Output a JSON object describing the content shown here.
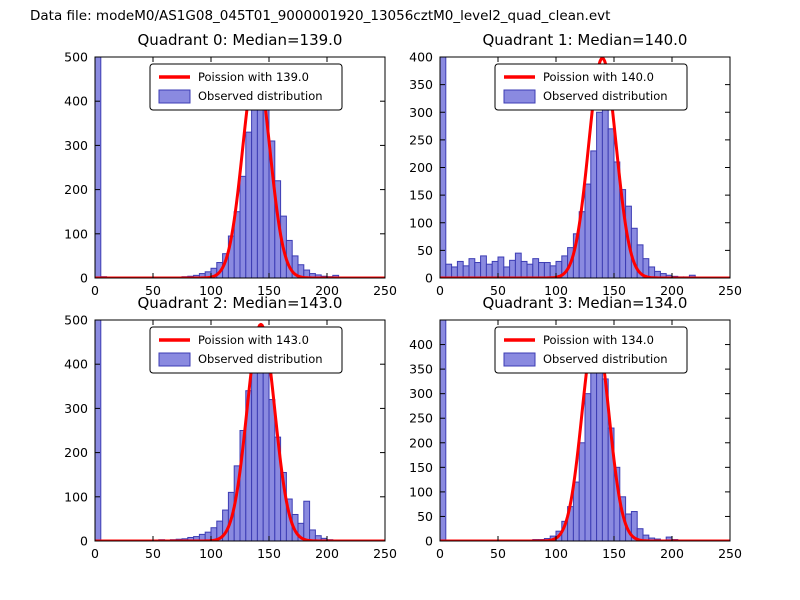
{
  "suptitle": "Data file: modeM0/AS1G08_045T01_9000001920_13056cztM0_level2_quad_clean.evt",
  "colors": {
    "bar_fill": "#8a8ae0",
    "bar_edge": "#3c3cb4",
    "curve": "#ff0000",
    "axis": "#000000",
    "legend_bg": "#ffffff"
  },
  "chart_data": [
    {
      "type": "bar",
      "subtype": "histogram-with-fit-line",
      "title": "Quadrant 0: Median=139.0",
      "median": 139.0,
      "legend": [
        "Poission with 139.0",
        "Observed distribution"
      ],
      "xlim": [
        0,
        250
      ],
      "ylim": [
        0,
        500
      ],
      "xticks": [
        0,
        50,
        100,
        150,
        200,
        250
      ],
      "yticks": [
        0,
        100,
        200,
        300,
        400,
        500
      ],
      "bin_width": 5,
      "counts": [
        500,
        3,
        2,
        2,
        1,
        2,
        1,
        2,
        1,
        2,
        1,
        2,
        2,
        1,
        2,
        3,
        4,
        6,
        10,
        14,
        22,
        35,
        55,
        95,
        150,
        230,
        330,
        420,
        435,
        390,
        310,
        220,
        140,
        85,
        50,
        30,
        18,
        10,
        7,
        4,
        3,
        6,
        0,
        0,
        0,
        0,
        0,
        0,
        0,
        0
      ],
      "curve": {
        "model": "poisson-approx",
        "lambda": 139.0,
        "peak": 480
      }
    },
    {
      "type": "bar",
      "subtype": "histogram-with-fit-line",
      "title": "Quadrant 1: Median=140.0",
      "median": 140.0,
      "legend": [
        "Poission with 140.0",
        "Observed distribution"
      ],
      "xlim": [
        0,
        250
      ],
      "ylim": [
        0,
        400
      ],
      "xticks": [
        0,
        50,
        100,
        150,
        200,
        250
      ],
      "yticks": [
        0,
        50,
        100,
        150,
        200,
        250,
        300,
        350,
        400
      ],
      "bin_width": 5,
      "counts": [
        400,
        25,
        20,
        30,
        22,
        35,
        28,
        40,
        25,
        30,
        38,
        20,
        32,
        45,
        30,
        25,
        35,
        28,
        28,
        22,
        30,
        40,
        55,
        80,
        120,
        170,
        230,
        300,
        320,
        270,
        210,
        160,
        130,
        90,
        60,
        35,
        20,
        12,
        8,
        5,
        3,
        2,
        2,
        5,
        0,
        0,
        0,
        0,
        0,
        0
      ],
      "curve": {
        "model": "poisson-approx",
        "lambda": 140.0,
        "peak": 398
      }
    },
    {
      "type": "bar",
      "subtype": "histogram-with-fit-line",
      "title": "Quadrant 2: Median=143.0",
      "median": 143.0,
      "legend": [
        "Poission with 143.0",
        "Observed distribution"
      ],
      "xlim": [
        0,
        250
      ],
      "ylim": [
        0,
        500
      ],
      "xticks": [
        0,
        50,
        100,
        150,
        200,
        250
      ],
      "yticks": [
        0,
        100,
        200,
        300,
        400,
        500
      ],
      "bin_width": 5,
      "counts": [
        500,
        2,
        1,
        2,
        1,
        1,
        2,
        1,
        2,
        1,
        2,
        3,
        2,
        3,
        4,
        5,
        8,
        10,
        15,
        20,
        30,
        45,
        70,
        110,
        170,
        250,
        340,
        410,
        430,
        400,
        320,
        235,
        155,
        95,
        60,
        40,
        90,
        25,
        12,
        6,
        3,
        0,
        0,
        0,
        0,
        0,
        0,
        0,
        0,
        0
      ],
      "curve": {
        "model": "poisson-approx",
        "lambda": 143.0,
        "peak": 490
      }
    },
    {
      "type": "bar",
      "subtype": "histogram-with-fit-line",
      "title": "Quadrant 3: Median=134.0",
      "median": 134.0,
      "legend": [
        "Poission with 134.0",
        "Observed distribution"
      ],
      "xlim": [
        0,
        250
      ],
      "ylim": [
        0,
        450
      ],
      "xticks": [
        0,
        50,
        100,
        150,
        200,
        250
      ],
      "yticks": [
        0,
        50,
        100,
        150,
        200,
        250,
        300,
        350,
        400
      ],
      "bin_width": 5,
      "counts": [
        450,
        2,
        1,
        1,
        2,
        1,
        1,
        2,
        1,
        2,
        1,
        1,
        2,
        2,
        1,
        2,
        3,
        3,
        5,
        10,
        20,
        40,
        70,
        120,
        200,
        300,
        420,
        400,
        330,
        230,
        150,
        90,
        55,
        60,
        25,
        12,
        6,
        4,
        2,
        8,
        3,
        0,
        0,
        0,
        0,
        0,
        0,
        0,
        0,
        0
      ],
      "curve": {
        "model": "poisson-approx",
        "lambda": 134.0,
        "peak": 430
      }
    }
  ]
}
